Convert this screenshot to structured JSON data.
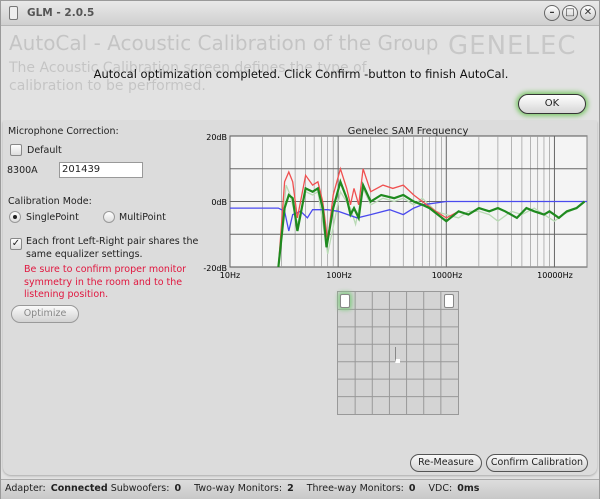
{
  "window": {
    "title": "GLM - 2.0.5",
    "minimize": "–",
    "maximize": "□",
    "close": "✕"
  },
  "header": {
    "title": "AutoCal - Acoustic Calibration of the Group",
    "subtitle": "The Acoustic Calibration screen defines the type of calibration to be performed.",
    "logo": "GENELEC"
  },
  "dialog": {
    "message": "Autocal optimization completed. Click Confirm -button to finish AutoCal.",
    "ok_label": "OK"
  },
  "settings": {
    "mic_label": "Microphone Correction:",
    "default_label": "Default",
    "default_checked": false,
    "mic_model": "8300A",
    "mic_serial": "201439",
    "mode_label": "Calibration Mode:",
    "single_label": "SinglePoint",
    "multi_label": "MultiPoint",
    "selected_mode": "SinglePoint",
    "pair_label": "Each front Left-Right pair shares the same equalizer settings.",
    "pair_checked": true,
    "warning": "Be sure to confirm proper monitor symmetry in the room and to the listening position.",
    "optimize_label": "Optimize"
  },
  "chart_data": {
    "type": "line",
    "title": "Genelec SAM Frequency",
    "xscale": "log",
    "xlim": [
      10,
      20000
    ],
    "ylim": [
      -20,
      20
    ],
    "x_ticks": [
      "10Hz",
      "100Hz",
      "1000Hz",
      "10000Hz"
    ],
    "y_ticks": [
      "20dB",
      "0dB",
      "-20dB"
    ],
    "grid": true,
    "series": [
      {
        "color": "#b9dab5",
        "points": [
          [
            28,
            -20
          ],
          [
            33,
            5
          ],
          [
            36,
            2
          ],
          [
            42,
            -7
          ],
          [
            50,
            3
          ],
          [
            58,
            2
          ],
          [
            65,
            3
          ],
          [
            80,
            -16
          ],
          [
            105,
            3
          ],
          [
            130,
            -2
          ],
          [
            145,
            -7
          ],
          [
            170,
            4
          ],
          [
            200,
            -1
          ],
          [
            260,
            1
          ],
          [
            330,
            0
          ],
          [
            400,
            1
          ],
          [
            500,
            -1
          ],
          [
            600,
            1
          ],
          [
            800,
            -3
          ],
          [
            1000,
            -4
          ],
          [
            1300,
            -5
          ],
          [
            1600,
            -3
          ],
          [
            2000,
            -3
          ],
          [
            2500,
            -4
          ],
          [
            3000,
            -6
          ],
          [
            4000,
            -3
          ],
          [
            5000,
            -4
          ],
          [
            6500,
            -2
          ],
          [
            8000,
            -4
          ],
          [
            10000,
            -6
          ],
          [
            12000,
            -4
          ],
          [
            16000,
            -2
          ],
          [
            19000,
            0
          ]
        ]
      },
      {
        "color": "#4a4aee",
        "points": [
          [
            10,
            -2
          ],
          [
            28,
            -2
          ],
          [
            32,
            -3
          ],
          [
            35,
            -9
          ],
          [
            38,
            -4
          ],
          [
            45,
            -3
          ],
          [
            52,
            -5
          ],
          [
            58,
            -2.5
          ],
          [
            80,
            -2.5
          ],
          [
            100,
            -3
          ],
          [
            150,
            -5
          ],
          [
            200,
            -4
          ],
          [
            300,
            -2.5
          ],
          [
            400,
            -4
          ],
          [
            500,
            -2
          ],
          [
            600,
            -1
          ],
          [
            1000,
            0
          ],
          [
            2000,
            0
          ],
          [
            20000,
            0
          ]
        ]
      },
      {
        "color": "#f05050",
        "points": [
          [
            28,
            -20
          ],
          [
            32,
            6
          ],
          [
            35,
            9
          ],
          [
            38,
            6
          ],
          [
            42,
            -5
          ],
          [
            50,
            8
          ],
          [
            58,
            5
          ],
          [
            65,
            6
          ],
          [
            72,
            0
          ],
          [
            80,
            -12
          ],
          [
            90,
            2
          ],
          [
            105,
            10
          ],
          [
            120,
            4
          ],
          [
            130,
            -1
          ],
          [
            140,
            4
          ],
          [
            155,
            -1
          ],
          [
            170,
            10
          ],
          [
            200,
            3
          ],
          [
            260,
            5
          ],
          [
            320,
            4
          ],
          [
            400,
            5
          ],
          [
            500,
            2
          ],
          [
            600,
            0
          ],
          [
            800,
            -3
          ],
          [
            1000,
            -5
          ],
          [
            1300,
            -3
          ],
          [
            1600,
            -4
          ],
          [
            2000,
            -2
          ],
          [
            2500,
            -3
          ],
          [
            3000,
            -2
          ],
          [
            3500,
            -3
          ],
          [
            4500,
            -5
          ],
          [
            5500,
            -2
          ],
          [
            6500,
            -3
          ],
          [
            8000,
            -4
          ],
          [
            9000,
            -3
          ],
          [
            11000,
            -5
          ],
          [
            13000,
            -3
          ],
          [
            16000,
            -2
          ],
          [
            19000,
            0
          ]
        ]
      },
      {
        "color": "#1f8a1f",
        "points": [
          [
            28,
            -20
          ],
          [
            32,
            -2
          ],
          [
            35,
            2
          ],
          [
            38,
            1
          ],
          [
            42,
            -9
          ],
          [
            50,
            4
          ],
          [
            58,
            3
          ],
          [
            65,
            4
          ],
          [
            72,
            -2
          ],
          [
            78,
            -14
          ],
          [
            90,
            -2
          ],
          [
            105,
            6
          ],
          [
            120,
            1
          ],
          [
            130,
            -4
          ],
          [
            140,
            -2
          ],
          [
            155,
            -5
          ],
          [
            170,
            5
          ],
          [
            200,
            0
          ],
          [
            250,
            2
          ],
          [
            330,
            1
          ],
          [
            400,
            2
          ],
          [
            500,
            0
          ],
          [
            600,
            -1
          ],
          [
            700,
            -2
          ],
          [
            1000,
            -6
          ],
          [
            1300,
            -3
          ],
          [
            1600,
            -4
          ],
          [
            2000,
            -2
          ],
          [
            2500,
            -3
          ],
          [
            3000,
            -2
          ],
          [
            3500,
            -3
          ],
          [
            4500,
            -5
          ],
          [
            5500,
            -2
          ],
          [
            6500,
            -3
          ],
          [
            8000,
            -4
          ],
          [
            9000,
            -3
          ],
          [
            11000,
            -5
          ],
          [
            13000,
            -3
          ],
          [
            16000,
            -2
          ],
          [
            19000,
            0
          ]
        ]
      }
    ]
  },
  "actions": {
    "remeasure_label": "Re-Measure",
    "confirm_label": "Confirm Calibration"
  },
  "status": {
    "adapter_label": "Adapter:",
    "adapter_value": "Connected",
    "sub_label": "Subwoofers:",
    "sub_value": "0",
    "two_label": "Two-way Monitors:",
    "two_value": "2",
    "three_label": "Three-way Monitors:",
    "three_value": "0",
    "vdc_label": "VDC:",
    "vdc_value": "0ms"
  }
}
